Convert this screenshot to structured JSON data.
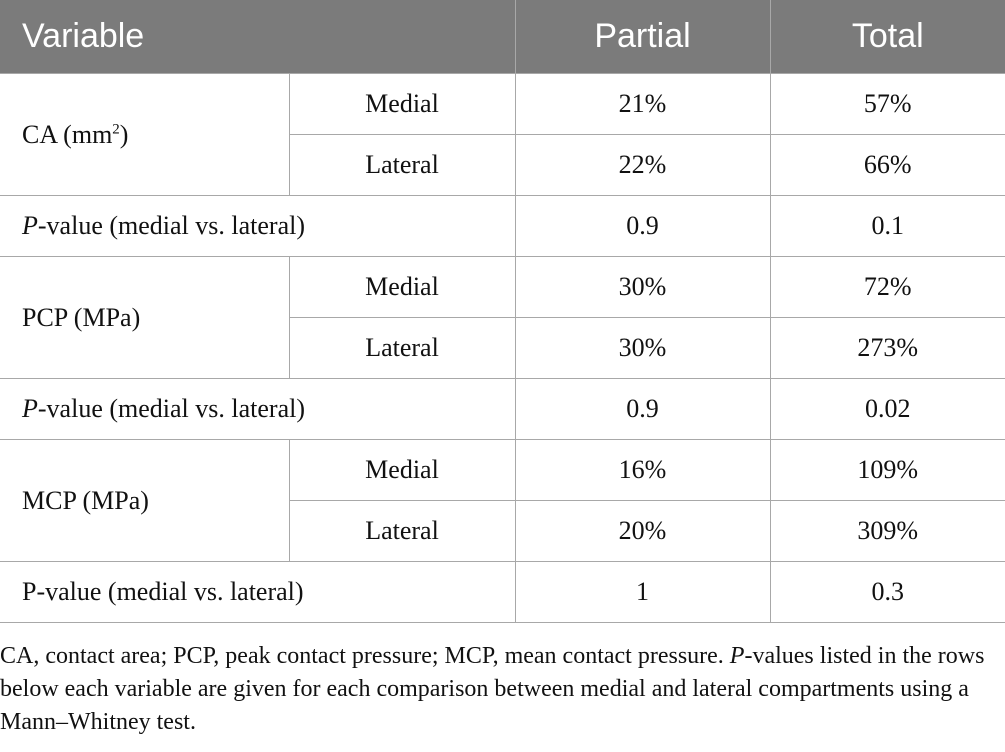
{
  "table": {
    "headers": {
      "variable": "Variable",
      "partial": "Partial",
      "total": "Total"
    },
    "groups": [
      {
        "label": "CA (mm",
        "label_sup": "2",
        "label_suffix": ")",
        "rows": [
          {
            "sub": "Medial",
            "partial": "21%",
            "total": "57%"
          },
          {
            "sub": "Lateral",
            "partial": "22%",
            "total": "66%"
          }
        ],
        "pvalue": {
          "prefix": "P",
          "label": "-value (medial vs. lateral)",
          "partial": "0.9",
          "total": "0.1"
        }
      },
      {
        "label": "PCP (MPa)",
        "rows": [
          {
            "sub": "Medial",
            "partial": "30%",
            "total": "72%"
          },
          {
            "sub": "Lateral",
            "partial": "30%",
            "total": "273%"
          }
        ],
        "pvalue": {
          "prefix": "P",
          "label": "-value (medial vs. lateral)",
          "partial": "0.9",
          "total": "0.02"
        }
      },
      {
        "label": "MCP (MPa)",
        "rows": [
          {
            "sub": "Medial",
            "partial": "16%",
            "total": "109%"
          },
          {
            "sub": "Lateral",
            "partial": "20%",
            "total": "309%"
          }
        ],
        "pvalue": {
          "label": "P-value (medial vs. lateral)",
          "partial": "1",
          "total": "0.3"
        }
      }
    ]
  },
  "footnote": {
    "part1": "CA, contact area; PCP, peak contact pressure; MCP, mean contact pressure. ",
    "p_italic": "P",
    "part2": "-values listed in the rows below each variable are given for each comparison between medial and lateral compartments using a Mann–Whitney test."
  },
  "colors": {
    "header_bg": "#7b7b7b",
    "header_text": "#ffffff",
    "grid": "#a8a8a8"
  }
}
